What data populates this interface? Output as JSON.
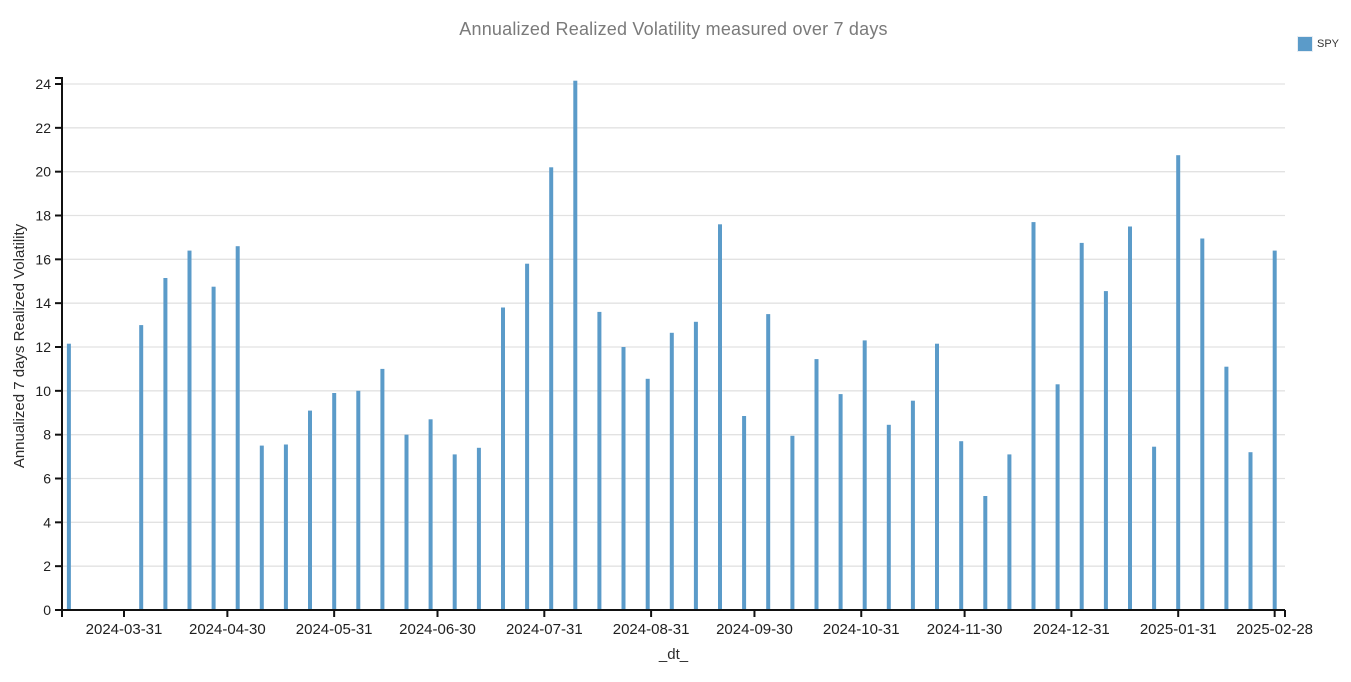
{
  "chart": {
    "title": "Annualized Realized Volatility measured over 7 days",
    "x_axis_title": "_dt_",
    "y_axis_title": "Annualized 7 days Realized Volatility",
    "legend": {
      "label": "SPY"
    }
  },
  "chart_data": {
    "type": "bar",
    "title": "Annualized Realized Volatility measured over 7 days",
    "xlabel": "_dt_",
    "ylabel": "Annualized 7 days Realized Volatility",
    "legend_entries": [
      "SPY"
    ],
    "legend_position": "top-right",
    "grid": "horizontal",
    "ylim": [
      0,
      24
    ],
    "y_ticks": [
      0,
      2,
      4,
      6,
      8,
      10,
      12,
      14,
      16,
      18,
      20,
      22,
      24
    ],
    "x_ticks": [
      "2024-03-31",
      "2024-04-30",
      "2024-05-31",
      "2024-06-30",
      "2024-07-31",
      "2024-08-31",
      "2024-09-30",
      "2024-10-31",
      "2024-11-30",
      "2024-12-31",
      "2025-01-31",
      "2025-02-28"
    ],
    "x_domain": [
      "2024-03-13",
      "2025-03-03"
    ],
    "series": [
      {
        "name": "SPY",
        "color": "#5b9bc9",
        "x": [
          "2024-03-15",
          "2024-04-05",
          "2024-04-12",
          "2024-04-19",
          "2024-04-26",
          "2024-05-03",
          "2024-05-10",
          "2024-05-17",
          "2024-05-24",
          "2024-05-31",
          "2024-06-07",
          "2024-06-14",
          "2024-06-21",
          "2024-06-28",
          "2024-07-05",
          "2024-07-12",
          "2024-07-19",
          "2024-07-26",
          "2024-08-02",
          "2024-08-09",
          "2024-08-16",
          "2024-08-23",
          "2024-08-30",
          "2024-09-06",
          "2024-09-13",
          "2024-09-20",
          "2024-09-27",
          "2024-10-04",
          "2024-10-11",
          "2024-10-18",
          "2024-10-25",
          "2024-11-01",
          "2024-11-08",
          "2024-11-15",
          "2024-11-22",
          "2024-11-29",
          "2024-12-06",
          "2024-12-13",
          "2024-12-20",
          "2024-12-27",
          "2025-01-03",
          "2025-01-10",
          "2025-01-17",
          "2025-01-24",
          "2025-01-31",
          "2025-02-07",
          "2025-02-14",
          "2025-02-21",
          "2025-02-28"
        ],
        "values": [
          12.15,
          13.0,
          15.15,
          16.4,
          14.75,
          16.6,
          7.5,
          7.55,
          9.1,
          9.9,
          10.0,
          11.0,
          8.0,
          8.7,
          7.1,
          7.4,
          13.8,
          15.8,
          20.2,
          24.15,
          13.6,
          12.0,
          10.55,
          12.65,
          13.15,
          17.6,
          8.85,
          13.5,
          7.95,
          11.45,
          9.85,
          12.3,
          8.45,
          9.55,
          12.15,
          7.7,
          5.2,
          7.1,
          17.7,
          10.3,
          16.75,
          14.55,
          17.5,
          7.45,
          20.75,
          16.95,
          11.1,
          7.2,
          16.4
        ]
      }
    ]
  },
  "colors": {
    "bar": "#5b9bc9",
    "grid": "#e2e2e2",
    "axis": "#111111",
    "tick_label": "#1f1f1f",
    "title": "#7a7a7a"
  }
}
